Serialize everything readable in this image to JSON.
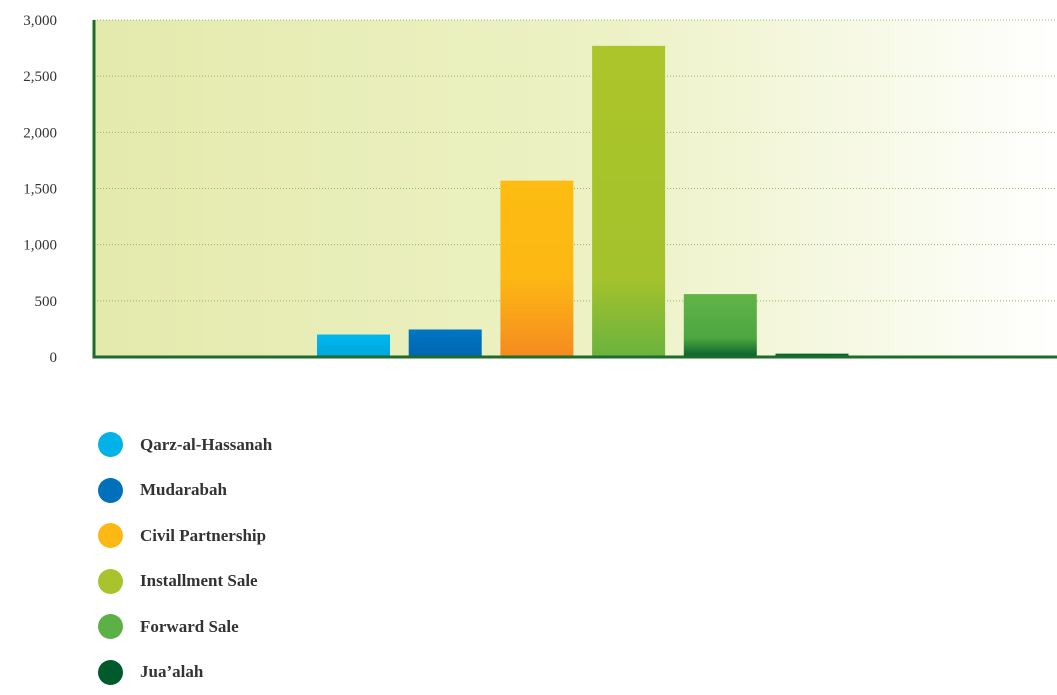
{
  "chart_data": {
    "type": "bar",
    "title": "",
    "xlabel": "",
    "ylabel": "",
    "ylim": [
      0,
      3000
    ],
    "yticks": [
      0,
      500,
      1000,
      1500,
      2000,
      2500,
      3000
    ],
    "ytick_labels": [
      "0",
      "500",
      "1,000",
      "1,500",
      "2,000",
      "2,500",
      "3,000"
    ],
    "grid": true,
    "legend_position": "bottom-left",
    "categories": [
      "Qarz-al-Hassanah",
      "Mudarabah",
      "Civil Partnership",
      "Installment Sale",
      "Forward Sale",
      "Jua’alah"
    ],
    "values": [
      200,
      245,
      1570,
      2770,
      560,
      30
    ],
    "colors": [
      "#00b2e8",
      "#0070bb",
      "#fdb913",
      "#a8c32b",
      "#5db045",
      "#005a2c"
    ]
  }
}
